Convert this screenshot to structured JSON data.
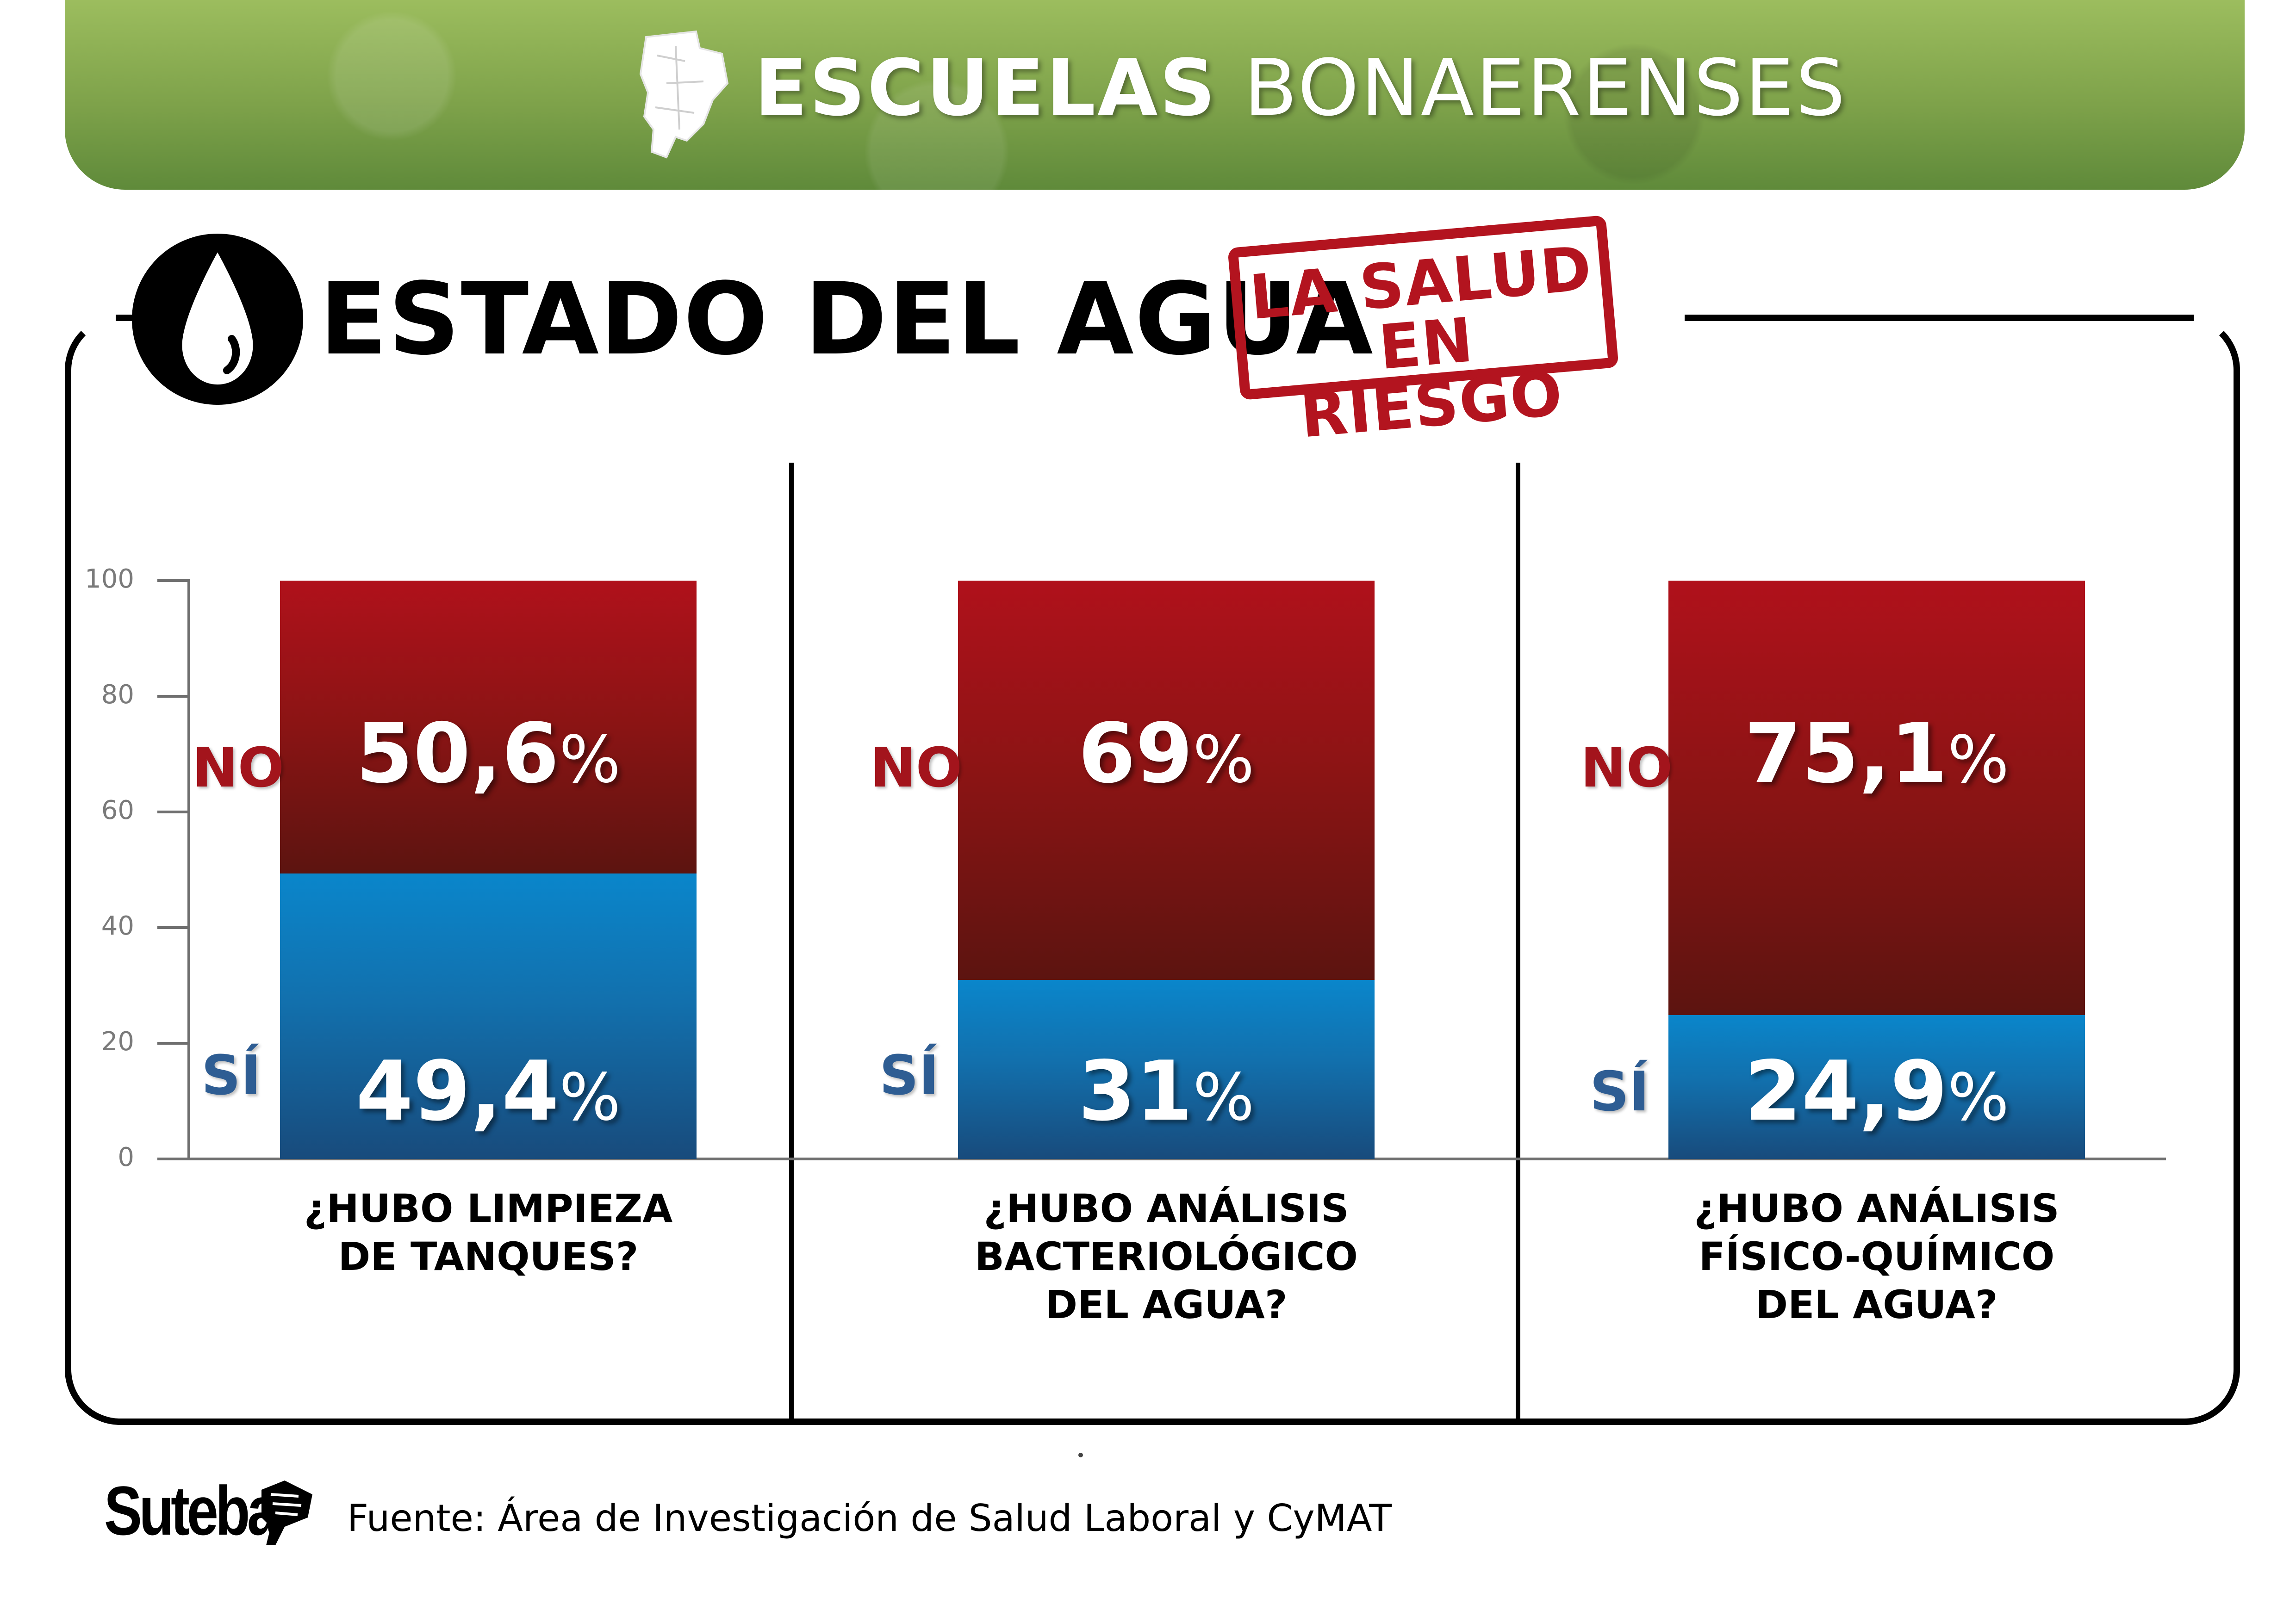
{
  "header": {
    "title_bold": "ESCUELAS",
    "title_regular": "BONAERENSES",
    "icon": "province-map-icon",
    "color": "#7ea24a"
  },
  "title": {
    "text": "ESTADO DEL AGUA",
    "icon": "water-drop-icon"
  },
  "stamp": {
    "line1": "LA SALUD",
    "line2": "EN RIESGO",
    "color": "#b3141f"
  },
  "chart_data": {
    "type": "bar",
    "stacked": true,
    "ylim": [
      0,
      100
    ],
    "yticks": [
      "0",
      "20",
      "40",
      "60",
      "80",
      "100"
    ],
    "categories": [
      [
        "¿HUBO LIMPIEZA",
        "DE TANQUES?"
      ],
      [
        "¿HUBO ANÁLISIS",
        "BACTERIOLÓGICO",
        "DEL AGUA?"
      ],
      [
        "¿HUBO ANÁLISIS",
        "FÍSICO-QUÍMICO",
        "DEL AGUA?"
      ]
    ],
    "series": [
      {
        "name": "SÍ",
        "values": [
          49.4,
          31,
          24.9
        ],
        "labels": [
          "49,4",
          "31",
          "24,9"
        ],
        "color": "#0a86cb"
      },
      {
        "name": "NO",
        "values": [
          50.6,
          69,
          75.1
        ],
        "labels": [
          "50,6",
          "69",
          "75,1"
        ],
        "color": "#b0111b"
      }
    ],
    "percent_symbol": "%"
  },
  "footer": {
    "logo": "Suteba",
    "source": "Fuente: Área de Investigación de Salud Laboral y CyMAT"
  }
}
